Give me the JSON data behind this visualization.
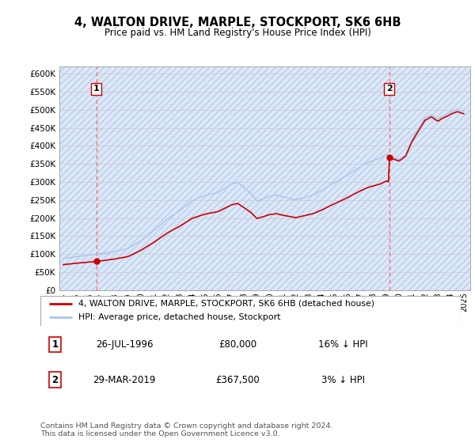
{
  "title": "4, WALTON DRIVE, MARPLE, STOCKPORT, SK6 6HB",
  "subtitle": "Price paid vs. HM Land Registry's House Price Index (HPI)",
  "ylim": [
    0,
    620000
  ],
  "yticks": [
    0,
    50000,
    100000,
    150000,
    200000,
    250000,
    300000,
    350000,
    400000,
    450000,
    500000,
    550000,
    600000
  ],
  "ytick_labels": [
    "£0",
    "£50K",
    "£100K",
    "£150K",
    "£200K",
    "£250K",
    "£300K",
    "£350K",
    "£400K",
    "£450K",
    "£500K",
    "£550K",
    "£600K"
  ],
  "sale1_date": 1996.57,
  "sale1_price": 80000,
  "sale1_label": "1",
  "sale2_date": 2019.24,
  "sale2_price": 367500,
  "sale2_label": "2",
  "hpi_line_color": "#aac4ee",
  "price_line_color": "#cc0000",
  "vline_color": "#ff6666",
  "legend_label1": "4, WALTON DRIVE, MARPLE, STOCKPORT, SK6 6HB (detached house)",
  "legend_label2": "HPI: Average price, detached house, Stockport",
  "table_row1": [
    "1",
    "26-JUL-1996",
    "£80,000",
    "16% ↓ HPI"
  ],
  "table_row2": [
    "2",
    "29-MAR-2019",
    "£367,500",
    "3% ↓ HPI"
  ],
  "footer": "Contains HM Land Registry data © Crown copyright and database right 2024.\nThis data is licensed under the Open Government Licence v3.0.",
  "hpi_anchors_x": [
    1994.0,
    1995.0,
    1996.0,
    1997.0,
    1998.0,
    1999.0,
    2000.0,
    2001.0,
    2002.0,
    2003.0,
    2004.0,
    2005.0,
    2006.0,
    2007.0,
    2007.5,
    2008.5,
    2009.0,
    2009.5,
    2010.0,
    2010.5,
    2011.0,
    2012.0,
    2013.0,
    2013.5,
    2014.0,
    2015.0,
    2015.5,
    2016.5,
    2017.5,
    2018.0,
    2018.5,
    2019.0,
    2019.5,
    2020.0,
    2020.5,
    2021.0,
    2021.5,
    2022.0,
    2022.5,
    2023.0,
    2023.5,
    2024.0,
    2024.5,
    2025.0
  ],
  "hpi_anchors_y": [
    88000,
    93000,
    97000,
    102000,
    108000,
    116000,
    138000,
    165000,
    196000,
    220000,
    248000,
    262000,
    272000,
    295000,
    300000,
    270000,
    248000,
    255000,
    262000,
    265000,
    260000,
    252000,
    262000,
    268000,
    278000,
    300000,
    310000,
    332000,
    355000,
    362000,
    368000,
    378000,
    370000,
    365000,
    378000,
    420000,
    450000,
    480000,
    490000,
    478000,
    488000,
    498000,
    505000,
    500000
  ]
}
